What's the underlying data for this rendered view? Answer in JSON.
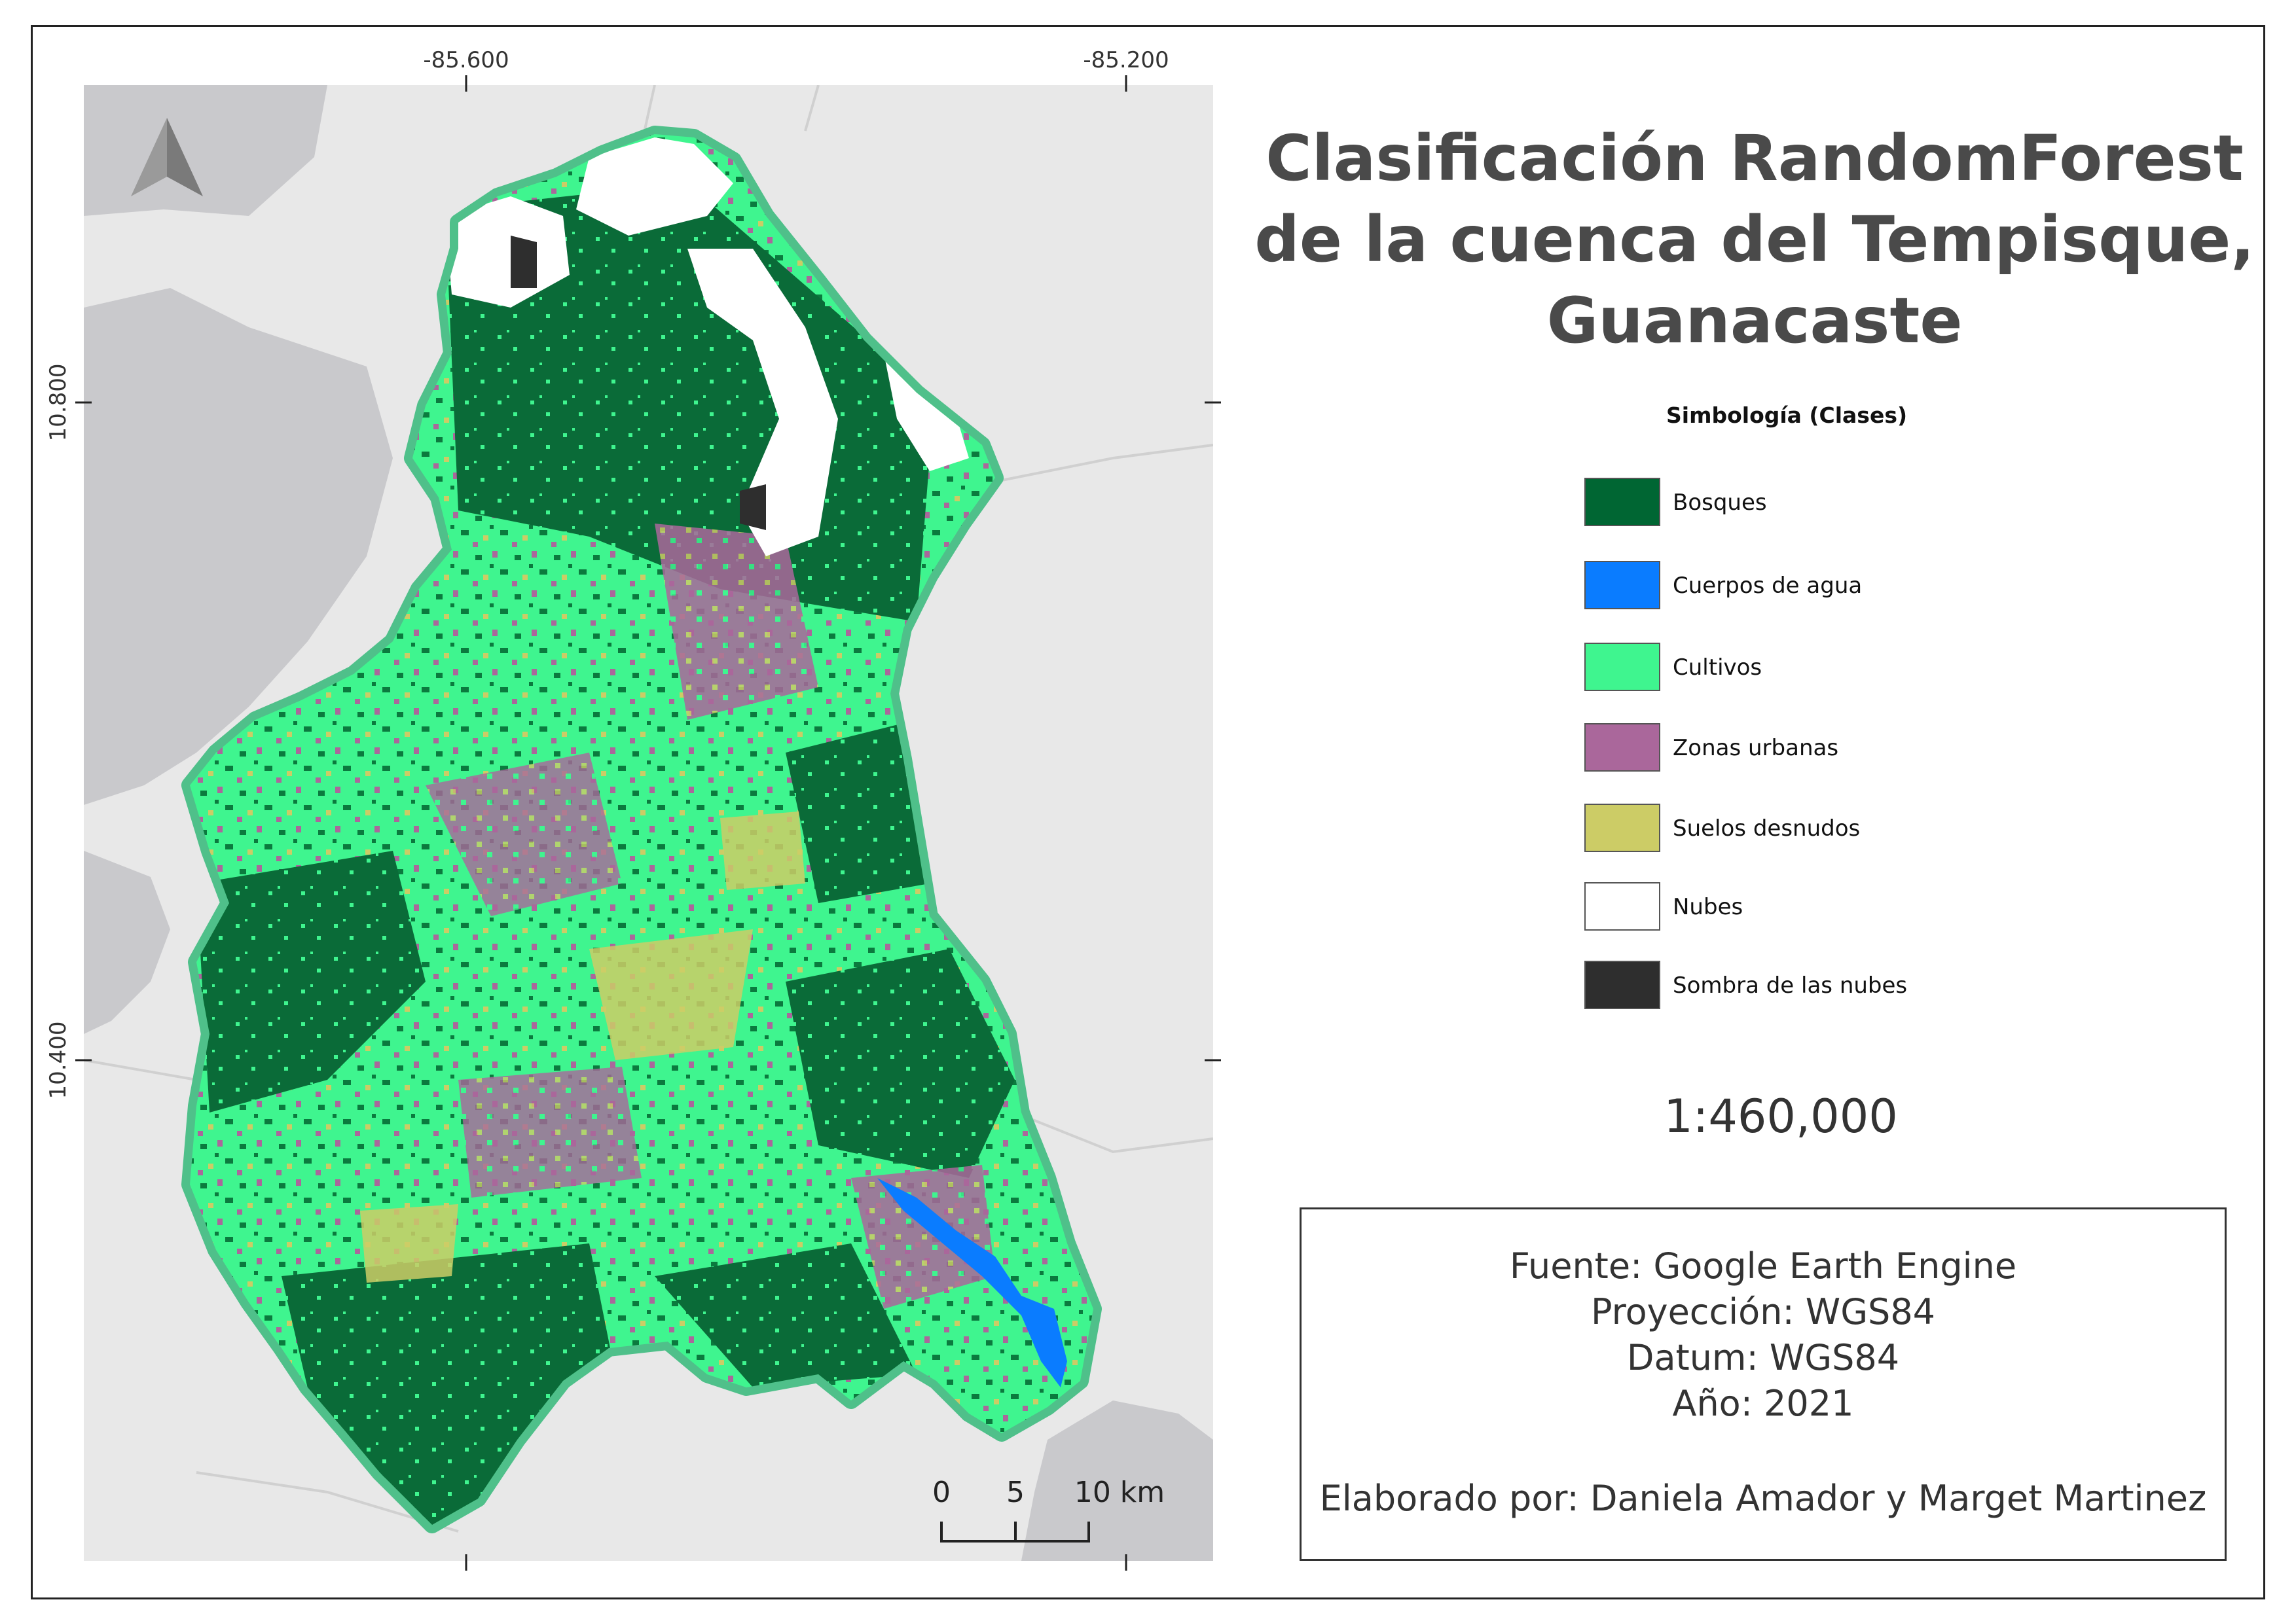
{
  "map": {
    "lon_ticks": [
      "-85.600",
      "-85.200"
    ],
    "lat_ticks": [
      "10.800",
      "10.400"
    ],
    "north_arrow": "north-arrow-icon",
    "scalebar": {
      "labels": [
        "0",
        "5",
        "10 km"
      ]
    },
    "colors": {
      "basemap_land": "#e8e8e8",
      "basemap_water": "#c9c9cc",
      "basin_outline": "#4fc08a"
    }
  },
  "title": {
    "lines": [
      "Clasificación RandomForest",
      "de la cuenca del Tempisque,",
      "Guanacaste"
    ]
  },
  "legend": {
    "title": "Simbología (Clases)",
    "items": [
      {
        "label": "Bosques",
        "color": "#006633"
      },
      {
        "label": "Cuerpos de agua",
        "color": "#0a7cff"
      },
      {
        "label": "Cultivos",
        "color": "#3ff58f"
      },
      {
        "label": "Zonas urbanas",
        "color": "#aa679b"
      },
      {
        "label": "Suelos desnudos",
        "color": "#cccc66"
      },
      {
        "label": "Nubes",
        "color": "#ffffff"
      },
      {
        "label": "Sombra de las nubes",
        "color": "#2e2e2e"
      }
    ]
  },
  "scale": "1:460,000",
  "info": {
    "source": "Fuente: Google Earth Engine",
    "projection": "Proyección: WGS84",
    "datum": "Datum: WGS84",
    "year": "Año: 2021",
    "author": "Elaborado por: Daniela Amador y Marget Martinez"
  }
}
